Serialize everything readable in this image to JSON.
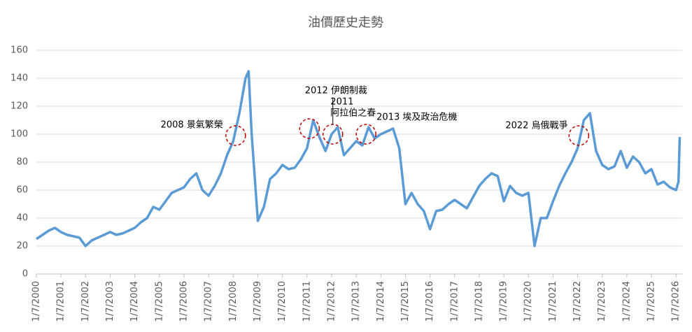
{
  "chart_data": {
    "type": "line",
    "title": "油價歷史走勢",
    "x": [
      2000.0,
      2000.25,
      2000.5,
      2000.75,
      2001.0,
      2001.25,
      2001.5,
      2001.75,
      2002.0,
      2002.25,
      2002.5,
      2002.75,
      2003.0,
      2003.25,
      2003.5,
      2003.75,
      2004.0,
      2004.25,
      2004.5,
      2004.75,
      2005.0,
      2005.25,
      2005.5,
      2005.75,
      2006.0,
      2006.25,
      2006.5,
      2006.75,
      2007.0,
      2007.25,
      2007.5,
      2007.75,
      2008.0,
      2008.25,
      2008.5,
      2008.625,
      2008.75,
      2009.0,
      2009.25,
      2009.5,
      2009.75,
      2010.0,
      2010.25,
      2010.5,
      2010.75,
      2011.0,
      2011.25,
      2011.5,
      2011.75,
      2012.0,
      2012.25,
      2012.5,
      2012.75,
      2013.0,
      2013.25,
      2013.5,
      2013.75,
      2014.0,
      2014.25,
      2014.5,
      2014.75,
      2015.0,
      2015.25,
      2015.5,
      2015.75,
      2016.0,
      2016.25,
      2016.5,
      2016.75,
      2017.0,
      2017.25,
      2017.5,
      2017.75,
      2018.0,
      2018.25,
      2018.5,
      2018.75,
      2019.0,
      2019.25,
      2019.5,
      2019.75,
      2020.0,
      2020.25,
      2020.5,
      2020.75,
      2021.0,
      2021.25,
      2021.5,
      2021.75,
      2022.0,
      2022.25,
      2022.5,
      2022.75,
      2023.0,
      2023.25,
      2023.5,
      2023.75,
      2024.0,
      2024.25,
      2024.5,
      2024.75,
      2025.0,
      2025.25,
      2025.5,
      2025.75,
      2026.0,
      2026.1,
      2026.15
    ],
    "series": [
      {
        "color": "#5b9bd5",
        "values": [
          25,
          28,
          31,
          33,
          30,
          28,
          27,
          26,
          20,
          24,
          26,
          28,
          30,
          28,
          29,
          31,
          33,
          37,
          40,
          48,
          46,
          52,
          58,
          60,
          62,
          68,
          72,
          60,
          56,
          63,
          72,
          85,
          95,
          115,
          140,
          145,
          100,
          38,
          48,
          68,
          72,
          78,
          75,
          76,
          82,
          90,
          110,
          98,
          88,
          100,
          105,
          85,
          90,
          95,
          92,
          105,
          97,
          100,
          102,
          104,
          90,
          50,
          58,
          50,
          45,
          32,
          45,
          46,
          50,
          53,
          50,
          47,
          55,
          63,
          68,
          72,
          70,
          52,
          63,
          58,
          56,
          58,
          20,
          40,
          40,
          52,
          63,
          72,
          80,
          90,
          110,
          115,
          88,
          78,
          75,
          77,
          88,
          76,
          84,
          80,
          72,
          75,
          64,
          66,
          62,
          60,
          66,
          98
        ]
      }
    ],
    "xlim": [
      2000,
      2026.25
    ],
    "xticks": [
      {
        "value": 2000,
        "label": "1/7/2000"
      },
      {
        "value": 2001,
        "label": "1/7/2001"
      },
      {
        "value": 2002,
        "label": "1/7/2002"
      },
      {
        "value": 2003,
        "label": "1/7/2003"
      },
      {
        "value": 2004,
        "label": "1/7/2004"
      },
      {
        "value": 2005,
        "label": "1/7/2005"
      },
      {
        "value": 2006,
        "label": "1/7/2006"
      },
      {
        "value": 2007,
        "label": "1/7/2007"
      },
      {
        "value": 2008,
        "label": "1/7/2008"
      },
      {
        "value": 2009,
        "label": "1/7/2009"
      },
      {
        "value": 2010,
        "label": "1/7/2010"
      },
      {
        "value": 2011,
        "label": "1/7/2011"
      },
      {
        "value": 2012,
        "label": "1/7/2012"
      },
      {
        "value": 2013,
        "label": "1/7/2013"
      },
      {
        "value": 2014,
        "label": "1/7/2014"
      },
      {
        "value": 2015,
        "label": "1/7/2015"
      },
      {
        "value": 2016,
        "label": "1/7/2016"
      },
      {
        "value": 2017,
        "label": "1/7/2017"
      },
      {
        "value": 2018,
        "label": "1/7/2018"
      },
      {
        "value": 2019,
        "label": "1/7/2019"
      },
      {
        "value": 2020,
        "label": "1/7/2020"
      },
      {
        "value": 2021,
        "label": "1/7/2021"
      },
      {
        "value": 2022,
        "label": "1/7/2022"
      },
      {
        "value": 2023,
        "label": "1/7/2023"
      },
      {
        "value": 2024,
        "label": "1/7/2024"
      },
      {
        "value": 2025,
        "label": "1/7/2025"
      },
      {
        "value": 2026,
        "label": "1/7/2026"
      }
    ],
    "ylim": [
      0,
      160
    ],
    "yticks": [
      0,
      20,
      40,
      60,
      80,
      100,
      120,
      140,
      160
    ],
    "grid": true,
    "annotations": [
      {
        "text": [
          "2008 景氣繁榮"
        ],
        "x": 2008.1,
        "y": 99
      },
      {
        "text": [
          "2011",
          "阿拉伯之春"
        ],
        "x": 2011.1,
        "y": 104
      },
      {
        "text": [
          "2012 伊朗制裁"
        ],
        "x": 2012.05,
        "y": 100
      },
      {
        "text": [
          "2013 埃及政治危機"
        ],
        "x": 2013.4,
        "y": 100
      },
      {
        "text": [
          "2022 烏俄戰爭"
        ],
        "x": 2022.05,
        "y": 99
      }
    ]
  }
}
